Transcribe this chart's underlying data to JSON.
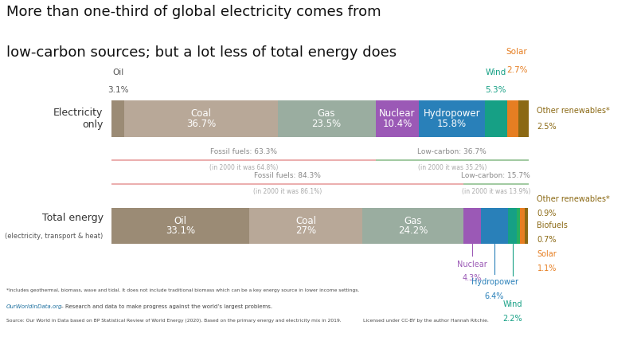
{
  "title_line1": "More than one-third of global electricity comes from",
  "title_line2": "low-carbon sources; but a lot less of total energy does",
  "title_fontsize": 13,
  "background_color": "#ffffff",
  "elec_segments": [
    {
      "label": "Oil",
      "value": 3.1,
      "color": "#9B8B75",
      "text_color": "#555555",
      "text_outside": true
    },
    {
      "label": "Coal",
      "value": 36.7,
      "color": "#B8A898",
      "text_color": "#ffffff",
      "text_outside": false
    },
    {
      "label": "Gas",
      "value": 23.5,
      "color": "#9AADA0",
      "text_color": "#ffffff",
      "text_outside": false
    },
    {
      "label": "Nuclear",
      "value": 10.4,
      "color": "#9B59B6",
      "text_color": "#ffffff",
      "text_outside": false
    },
    {
      "label": "Hydropower",
      "value": 15.8,
      "color": "#2980B9",
      "text_color": "#ffffff",
      "text_outside": false
    },
    {
      "label": "Wind",
      "value": 5.3,
      "color": "#16A085",
      "text_color": "#16A085",
      "text_outside": true
    },
    {
      "label": "Solar",
      "value": 2.7,
      "color": "#E67E22",
      "text_color": "#E67E22",
      "text_outside": true
    },
    {
      "label": "Other renewables",
      "value": 2.5,
      "color": "#8B6914",
      "text_color": "#8B6914",
      "text_outside": true
    }
  ],
  "total_segments": [
    {
      "label": "Oil",
      "value": 33.1,
      "color": "#9B8B75",
      "text_color": "#ffffff",
      "text_outside": false
    },
    {
      "label": "Coal",
      "value": 27.0,
      "color": "#B8A898",
      "text_color": "#ffffff",
      "text_outside": false
    },
    {
      "label": "Gas",
      "value": 24.2,
      "color": "#9AADA0",
      "text_color": "#ffffff",
      "text_outside": false
    },
    {
      "label": "Nuclear",
      "value": 4.3,
      "color": "#9B59B6",
      "text_color": "#9B59B6",
      "text_outside": true
    },
    {
      "label": "Hydropower",
      "value": 6.4,
      "color": "#2980B9",
      "text_color": "#2980B9",
      "text_outside": true
    },
    {
      "label": "Wind",
      "value": 2.2,
      "color": "#16A085",
      "text_color": "#16A085",
      "text_outside": true
    },
    {
      "label": "Biofuels",
      "value": 0.7,
      "color": "#27AE60",
      "text_color": "#8B6914",
      "text_outside": true
    },
    {
      "label": "Solar",
      "value": 1.1,
      "color": "#E67E22",
      "text_color": "#E67E22",
      "text_outside": true
    },
    {
      "label": "Other renewables",
      "value": 0.9,
      "color": "#8B6914",
      "text_color": "#8B6914",
      "text_outside": true
    }
  ],
  "elec_fossil_pct": "63.3%",
  "elec_fossil_year2000": "64.8%",
  "elec_lowcarbon_pct": "36.7%",
  "elec_lowcarbon_year2000": "35.2%",
  "total_fossil_pct": "84.3%",
  "total_fossil_year2000": "86.1%",
  "total_lowcarbon_pct": "15.7%",
  "total_lowcarbon_year2000": "13.9%",
  "footnote": "*Includes geothermal, biomass, wave and tidal. It does not include traditional biomass which can be a key energy source in lower income settings.",
  "source": "Source: Our World in Data based on BP Statistical Review of World Energy (2020). Based on the primary energy and electricity mix in 2019.",
  "owid_url": "OurWorldInData.org",
  "owid_tagline": " – Research and data to make progress against the world’s largest problems.",
  "license": "Licensed under CC-BY by the author Hannah Ritchie.",
  "owid_box_color": "#C0392B",
  "fossil_line_color": "#E8A0A0",
  "lowcarbon_line_color": "#90C090"
}
